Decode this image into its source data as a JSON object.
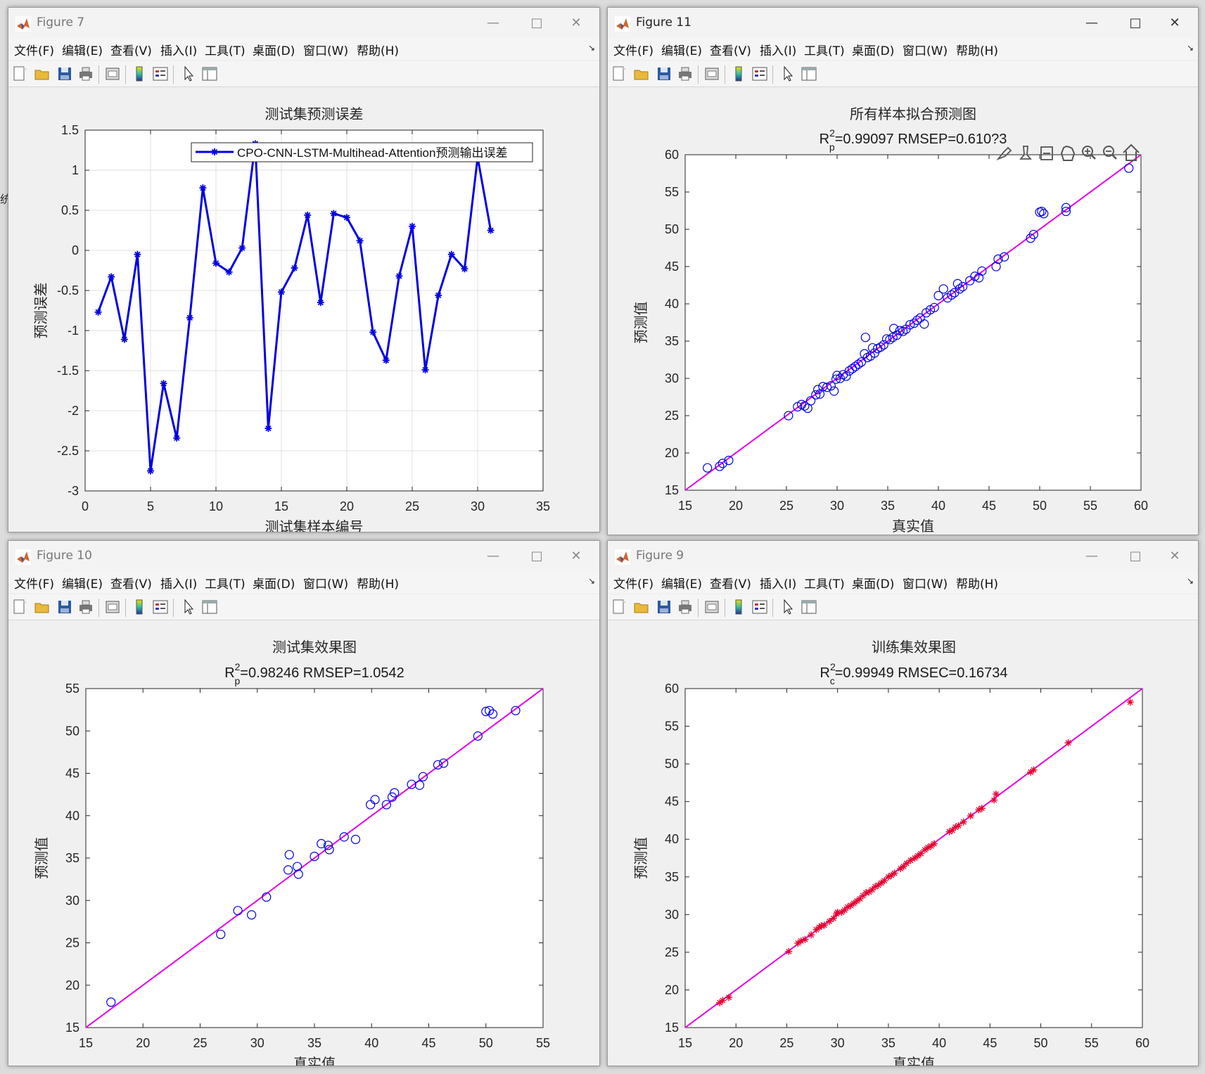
{
  "menu": [
    "文件(F)",
    "编辑(E)",
    "查看(V)",
    "插入(I)",
    "工具(T)",
    "桌面(D)",
    "窗口(W)",
    "帮助(H)"
  ],
  "figures": {
    "fig7": {
      "title": "Figure 7",
      "plot_title": "测试集预测误差",
      "xlabel": "测试集样本编号",
      "ylabel": "预测误差",
      "legend": "CPO-CNN-LSTM-Multihead-Attention预测输出误差"
    },
    "fig11": {
      "title": "Figure 11",
      "plot_title": "所有样本拟合预测图",
      "subtitle_prefix": "R",
      "subtitle_sup": "2",
      "subtitle_sub": "p",
      "subtitle_rest": "=0.99097  RMSEP=0.61",
      "subtitle_tail": "0?3",
      "xlabel": "真实值",
      "ylabel": "预测值"
    },
    "fig10": {
      "title": "Figure 10",
      "plot_title": "测试集效果图",
      "subtitle_prefix": "R",
      "subtitle_sup": "2",
      "subtitle_sub": "p",
      "subtitle_rest": "=0.98246  RMSEP=1.0542",
      "xlabel": "真实值",
      "ylabel": "预测值"
    },
    "fig9": {
      "title": "Figure 9",
      "plot_title": "训练集效果图",
      "subtitle_prefix": "R",
      "subtitle_sup": "2",
      "subtitle_sub": "c",
      "subtitle_rest": "=0.99949  RMSEC=0.16734",
      "xlabel": "真实值",
      "ylabel": "预测值"
    }
  },
  "chart_data": [
    {
      "id": "fig7",
      "type": "line",
      "title": "测试集预测误差",
      "xlabel": "测试集样本编号",
      "ylabel": "预测误差",
      "xlim": [
        0,
        35
      ],
      "ylim": [
        -3,
        1.5
      ],
      "xticks": [
        0,
        5,
        10,
        15,
        20,
        25,
        30,
        35
      ],
      "yticks": [
        -3,
        -2.5,
        -2,
        -1.5,
        -1,
        -0.5,
        0,
        0.5,
        1,
        1.5
      ],
      "grid": true,
      "legend_position": "top-right",
      "color": "#0000e6",
      "series": [
        {
          "name": "CPO-CNN-LSTM-Multihead-Attention预测输出误差",
          "x": [
            1,
            2,
            3,
            4,
            5,
            6,
            7,
            8,
            9,
            10,
            11,
            12,
            13,
            14,
            15,
            16,
            17,
            18,
            19,
            20,
            21,
            22,
            23,
            24,
            25,
            26,
            27,
            28,
            29,
            30,
            31
          ],
          "y": [
            -0.77,
            -0.33,
            -1.11,
            -0.05,
            -2.75,
            -1.66,
            -2.34,
            -0.84,
            0.78,
            -0.16,
            -0.27,
            0.03,
            1.33,
            -2.22,
            -0.52,
            -0.22,
            0.44,
            -0.65,
            0.46,
            0.41,
            0.12,
            -1.02,
            -1.37,
            -0.32,
            0.3,
            -1.49,
            -0.56,
            -0.05,
            -0.23,
            1.16,
            0.25
          ]
        }
      ]
    },
    {
      "id": "fig11",
      "type": "scatter",
      "title": "所有样本拟合预测图",
      "xlabel": "真实值",
      "ylabel": "预测值",
      "xlim": [
        15,
        60
      ],
      "ylim": [
        15,
        60
      ],
      "xticks": [
        15,
        20,
        25,
        30,
        35,
        40,
        45,
        50,
        55,
        60
      ],
      "yticks": [
        15,
        20,
        25,
        30,
        35,
        40,
        45,
        50,
        55,
        60
      ],
      "marker": "circle",
      "marker_color": "#0000e6",
      "line_color": "#e600e6",
      "points": [
        [
          17.2,
          18.0
        ],
        [
          18.4,
          18.2
        ],
        [
          18.7,
          18.6
        ],
        [
          19.3,
          19.0
        ],
        [
          25.2,
          25.0
        ],
        [
          26.1,
          26.2
        ],
        [
          26.5,
          26.5
        ],
        [
          26.8,
          26.3
        ],
        [
          27.1,
          26.0
        ],
        [
          27.4,
          27.0
        ],
        [
          27.9,
          27.8
        ],
        [
          28.1,
          28.5
        ],
        [
          28.3,
          27.9
        ],
        [
          28.6,
          28.9
        ],
        [
          29.0,
          28.8
        ],
        [
          29.4,
          29.0
        ],
        [
          29.7,
          28.3
        ],
        [
          29.9,
          29.9
        ],
        [
          30.0,
          30.4
        ],
        [
          30.3,
          30.0
        ],
        [
          30.6,
          30.5
        ],
        [
          30.9,
          30.3
        ],
        [
          31.2,
          31.0
        ],
        [
          31.5,
          31.3
        ],
        [
          31.8,
          31.6
        ],
        [
          32.1,
          31.9
        ],
        [
          32.4,
          32.2
        ],
        [
          32.7,
          33.3
        ],
        [
          32.8,
          35.5
        ],
        [
          33.0,
          32.8
        ],
        [
          33.3,
          33.0
        ],
        [
          33.5,
          34.1
        ],
        [
          33.7,
          33.4
        ],
        [
          34.0,
          34.0
        ],
        [
          34.3,
          34.2
        ],
        [
          34.6,
          34.5
        ],
        [
          34.9,
          35.3
        ],
        [
          35.2,
          35.2
        ],
        [
          35.5,
          35.5
        ],
        [
          35.6,
          36.7
        ],
        [
          35.9,
          35.8
        ],
        [
          36.2,
          36.4
        ],
        [
          36.5,
          36.3
        ],
        [
          36.8,
          36.6
        ],
        [
          37.2,
          37.2
        ],
        [
          37.6,
          37.4
        ],
        [
          37.9,
          37.8
        ],
        [
          38.2,
          38.1
        ],
        [
          38.6,
          37.3
        ],
        [
          38.8,
          38.8
        ],
        [
          39.2,
          39.2
        ],
        [
          39.6,
          39.5
        ],
        [
          40.0,
          41.1
        ],
        [
          40.5,
          42.0
        ],
        [
          40.9,
          40.8
        ],
        [
          41.3,
          41.2
        ],
        [
          41.6,
          41.5
        ],
        [
          41.9,
          42.7
        ],
        [
          42.1,
          42.0
        ],
        [
          42.4,
          42.3
        ],
        [
          43.1,
          43.1
        ],
        [
          43.6,
          43.7
        ],
        [
          44.0,
          43.5
        ],
        [
          44.3,
          44.4
        ],
        [
          45.7,
          45.0
        ],
        [
          45.9,
          46.0
        ],
        [
          46.5,
          46.3
        ],
        [
          49.1,
          48.8
        ],
        [
          49.4,
          49.3
        ],
        [
          50.0,
          52.3
        ],
        [
          50.4,
          52.1
        ],
        [
          50.2,
          52.4
        ],
        [
          52.6,
          52.4
        ],
        [
          52.6,
          52.9
        ],
        [
          58.8,
          58.2
        ]
      ]
    },
    {
      "id": "fig10",
      "type": "scatter",
      "title": "测试集效果图",
      "xlabel": "真实值",
      "ylabel": "预测值",
      "xlim": [
        15,
        55
      ],
      "ylim": [
        15,
        55
      ],
      "xticks": [
        15,
        20,
        25,
        30,
        35,
        40,
        45,
        50,
        55
      ],
      "yticks": [
        15,
        20,
        25,
        30,
        35,
        40,
        45,
        50,
        55
      ],
      "marker": "circle",
      "marker_color": "#0000e6",
      "line_color": "#e600e6",
      "points": [
        [
          17.2,
          18.0
        ],
        [
          26.8,
          26.0
        ],
        [
          28.3,
          28.8
        ],
        [
          29.5,
          28.3
        ],
        [
          30.8,
          30.4
        ],
        [
          32.7,
          33.6
        ],
        [
          32.8,
          35.4
        ],
        [
          33.5,
          34.0
        ],
        [
          33.6,
          33.1
        ],
        [
          35.0,
          35.2
        ],
        [
          35.6,
          36.7
        ],
        [
          36.2,
          36.5
        ],
        [
          36.3,
          36.0
        ],
        [
          37.6,
          37.5
        ],
        [
          38.6,
          37.2
        ],
        [
          39.9,
          41.3
        ],
        [
          40.3,
          41.9
        ],
        [
          41.3,
          41.3
        ],
        [
          41.8,
          42.2
        ],
        [
          42.0,
          42.7
        ],
        [
          43.5,
          43.7
        ],
        [
          44.2,
          43.6
        ],
        [
          44.5,
          44.6
        ],
        [
          45.8,
          46.0
        ],
        [
          46.3,
          46.2
        ],
        [
          49.3,
          49.4
        ],
        [
          50.0,
          52.3
        ],
        [
          50.3,
          52.4
        ],
        [
          50.6,
          52.0
        ],
        [
          52.6,
          52.4
        ]
      ]
    },
    {
      "id": "fig9",
      "type": "scatter",
      "title": "训练集效果图",
      "xlabel": "真实值",
      "ylabel": "预测值",
      "xlim": [
        15,
        60
      ],
      "ylim": [
        15,
        60
      ],
      "xticks": [
        15,
        20,
        25,
        30,
        35,
        40,
        45,
        50,
        55,
        60
      ],
      "yticks": [
        15,
        20,
        25,
        30,
        35,
        40,
        45,
        50,
        55,
        60
      ],
      "marker": "asterisk",
      "marker_color": "#e6002e",
      "line_color": "#e600e6",
      "points": [
        [
          18.4,
          18.3
        ],
        [
          18.7,
          18.6
        ],
        [
          19.3,
          19.0
        ],
        [
          25.2,
          25.1
        ],
        [
          26.1,
          26.2
        ],
        [
          26.4,
          26.5
        ],
        [
          26.8,
          26.7
        ],
        [
          27.4,
          27.3
        ],
        [
          27.9,
          28.0
        ],
        [
          28.2,
          28.3
        ],
        [
          28.4,
          28.5
        ],
        [
          28.7,
          28.6
        ],
        [
          29.2,
          29.1
        ],
        [
          29.6,
          29.5
        ],
        [
          29.9,
          30.1
        ],
        [
          30.0,
          30.3
        ],
        [
          30.4,
          30.3
        ],
        [
          30.7,
          30.6
        ],
        [
          31.0,
          31.0
        ],
        [
          31.3,
          31.2
        ],
        [
          31.6,
          31.5
        ],
        [
          31.9,
          31.8
        ],
        [
          32.2,
          32.1
        ],
        [
          32.5,
          32.5
        ],
        [
          32.8,
          32.9
        ],
        [
          33.1,
          33.0
        ],
        [
          33.4,
          33.3
        ],
        [
          33.7,
          33.7
        ],
        [
          34.0,
          33.9
        ],
        [
          34.3,
          34.2
        ],
        [
          34.6,
          34.5
        ],
        [
          35.0,
          35.0
        ],
        [
          35.3,
          35.2
        ],
        [
          35.6,
          35.5
        ],
        [
          36.2,
          36.1
        ],
        [
          36.5,
          36.4
        ],
        [
          36.8,
          36.8
        ],
        [
          37.2,
          37.2
        ],
        [
          37.6,
          37.5
        ],
        [
          37.9,
          37.8
        ],
        [
          38.2,
          38.1
        ],
        [
          38.6,
          38.6
        ],
        [
          38.9,
          38.9
        ],
        [
          39.2,
          39.1
        ],
        [
          39.5,
          39.4
        ],
        [
          41.0,
          41.0
        ],
        [
          41.3,
          41.2
        ],
        [
          41.6,
          41.6
        ],
        [
          41.9,
          41.8
        ],
        [
          42.4,
          42.3
        ],
        [
          43.1,
          43.1
        ],
        [
          43.9,
          43.9
        ],
        [
          44.2,
          44.1
        ],
        [
          45.4,
          45.2
        ],
        [
          45.6,
          46.0
        ],
        [
          49.0,
          48.9
        ],
        [
          49.3,
          49.2
        ],
        [
          52.7,
          52.8
        ],
        [
          58.8,
          58.2
        ]
      ]
    }
  ]
}
